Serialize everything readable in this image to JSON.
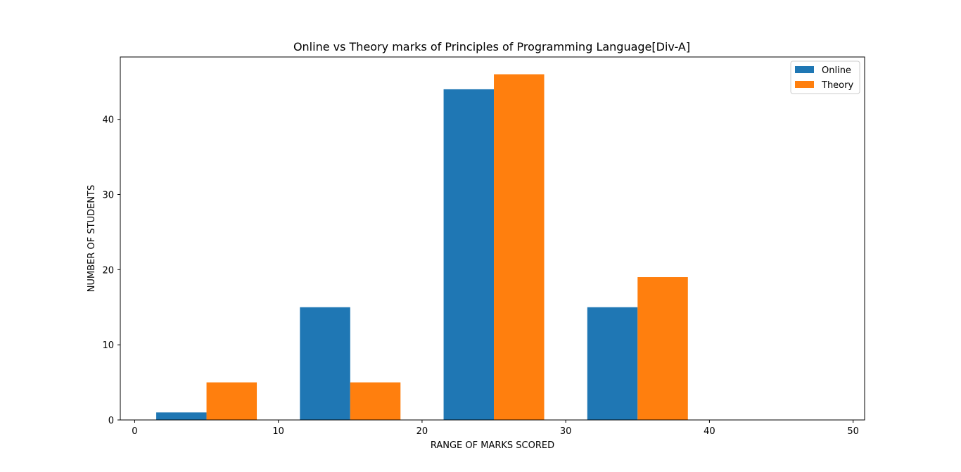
{
  "chart_data": {
    "type": "bar",
    "title": "Online vs Theory marks of Principles of Programming Language[Div-A]",
    "xlabel": "RANGE OF MARKS SCORED",
    "ylabel": "NUMBER OF STUDENTS",
    "xlim": [
      -1,
      50.8
    ],
    "ylim": [
      0,
      48.3
    ],
    "xticks": [
      0,
      10,
      20,
      30,
      40,
      50
    ],
    "yticks": [
      0,
      10,
      20,
      30,
      40
    ],
    "bar_width": 3.5,
    "grid": false,
    "legend_position": "top-right",
    "series": [
      {
        "name": "Online",
        "color": "#1f77b4",
        "x": [
          1.5,
          11.5,
          21.5,
          31.5,
          41.5
        ],
        "values": [
          1,
          15,
          44,
          15,
          0
        ]
      },
      {
        "name": "Theory",
        "color": "#ff7f0e",
        "x": [
          5,
          15,
          25,
          35,
          45
        ],
        "values": [
          5,
          5,
          46,
          19,
          0
        ]
      }
    ]
  }
}
